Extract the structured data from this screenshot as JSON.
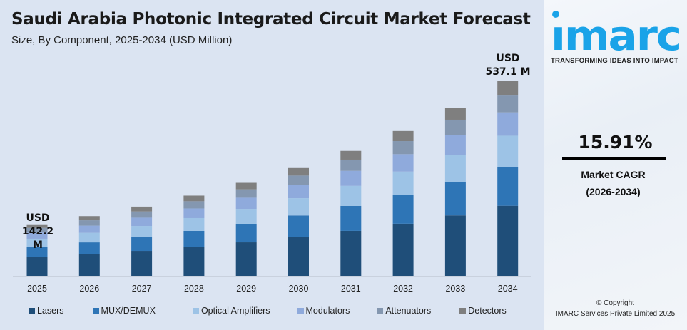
{
  "chart_data": {
    "type": "bar",
    "stacked": true,
    "title": "Saudi Arabia Photonic Integrated Circuit Market Forecast",
    "subtitle": "Size, By Component, 2025-2034 (USD Million)",
    "categories": [
      "2025",
      "2026",
      "2027",
      "2028",
      "2029",
      "2030",
      "2031",
      "2032",
      "2033",
      "2034"
    ],
    "series": [
      {
        "name": "Lasers",
        "color": "#1f4e79",
        "values": [
          51.2,
          59.3,
          68.8,
          79.7,
          92.4,
          107.1,
          124.1,
          143.9,
          166.8,
          193.4
        ]
      },
      {
        "name": "MUX/DEMUX",
        "color": "#2e75b6",
        "values": [
          28.4,
          33.0,
          38.2,
          44.3,
          51.3,
          59.5,
          69.0,
          79.9,
          92.7,
          107.4
        ]
      },
      {
        "name": "Optical Amplifiers",
        "color": "#9dc3e6",
        "values": [
          22.8,
          26.4,
          30.6,
          35.4,
          41.1,
          47.6,
          55.2,
          64.0,
          74.1,
          85.9
        ]
      },
      {
        "name": "Modulators",
        "color": "#8faadc",
        "values": [
          17.1,
          19.8,
          22.9,
          26.6,
          30.8,
          35.7,
          41.4,
          48.0,
          55.6,
          64.5
        ]
      },
      {
        "name": "Attenuators",
        "color": "#8497b0",
        "values": [
          12.8,
          14.8,
          17.2,
          19.9,
          23.1,
          26.8,
          31.0,
          36.0,
          41.7,
          48.3
        ]
      },
      {
        "name": "Detectors",
        "color": "#7f7f7f",
        "values": [
          9.9,
          11.5,
          13.3,
          15.5,
          18.0,
          20.8,
          24.1,
          27.9,
          32.4,
          37.6
        ]
      }
    ],
    "annotations": [
      {
        "category": "2025",
        "line1": "USD",
        "line2": "142.2 M"
      },
      {
        "category": "2034",
        "line1": "USD",
        "line2": "537.1 M"
      }
    ],
    "ylim": [
      0,
      537.1
    ],
    "grid": false,
    "y_axis_visible": false,
    "legend_position": "bottom"
  },
  "side": {
    "logo_text": "imarc",
    "tagline": "TRANSFORMING IDEAS INTO IMPACT",
    "cagr_value": "15.91%",
    "cagr_label": "Market CAGR",
    "cagr_period": "(2026-2034)",
    "copyright": "© Copyright",
    "company": "IMARC Services Private Limited 2025",
    "brand_color": "#1aa3e8"
  }
}
